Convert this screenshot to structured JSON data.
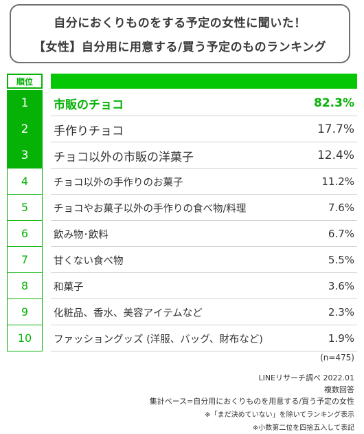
{
  "title": {
    "line1": "自分におくりものをする予定の女性に聞いた！",
    "line2": "【女性】自分用に用意する/買う予定のものランキング"
  },
  "header": {
    "rank_label": "順位"
  },
  "chart_data": {
    "type": "table",
    "columns": [
      "順位",
      "",
      ""
    ],
    "rows": [
      {
        "rank": "1",
        "label": "市販のチョコ",
        "value": "82.3%"
      },
      {
        "rank": "2",
        "label": "手作りチョコ",
        "value": "17.7%"
      },
      {
        "rank": "3",
        "label": "チョコ以外の市販の洋菓子",
        "value": "12.4%"
      },
      {
        "rank": "4",
        "label": "チョコ以外の手作りのお菓子",
        "value": "11.2%"
      },
      {
        "rank": "5",
        "label": "チョコやお菓子以外の手作りの食べ物/料理",
        "value": "7.6%"
      },
      {
        "rank": "6",
        "label": "飲み物･飲料",
        "value": "6.7%"
      },
      {
        "rank": "7",
        "label": "甘くない食べ物",
        "value": "5.5%"
      },
      {
        "rank": "8",
        "label": "和菓子",
        "value": "3.6%"
      },
      {
        "rank": "9",
        "label": "化粧品、香水、美容アイテムなど",
        "value": "2.3%"
      },
      {
        "rank": "10",
        "label": "ファッショングッズ (洋服、バッグ、財布など)",
        "value": "1.9%"
      }
    ]
  },
  "footnotes": {
    "n": "(n=475)",
    "source": "LINEリサーチ調べ 2022.01",
    "multi": "複数回答",
    "base": "集計ベース=自分用におくりものを用意する/買う予定の女性",
    "note1": "※「まだ決めていない」を除いてランキング表示",
    "note2": "※小数第二位を四捨五入して表記"
  },
  "colors": {
    "accent": "#06b206",
    "header_bar": "#06c706",
    "text": "#333333"
  }
}
